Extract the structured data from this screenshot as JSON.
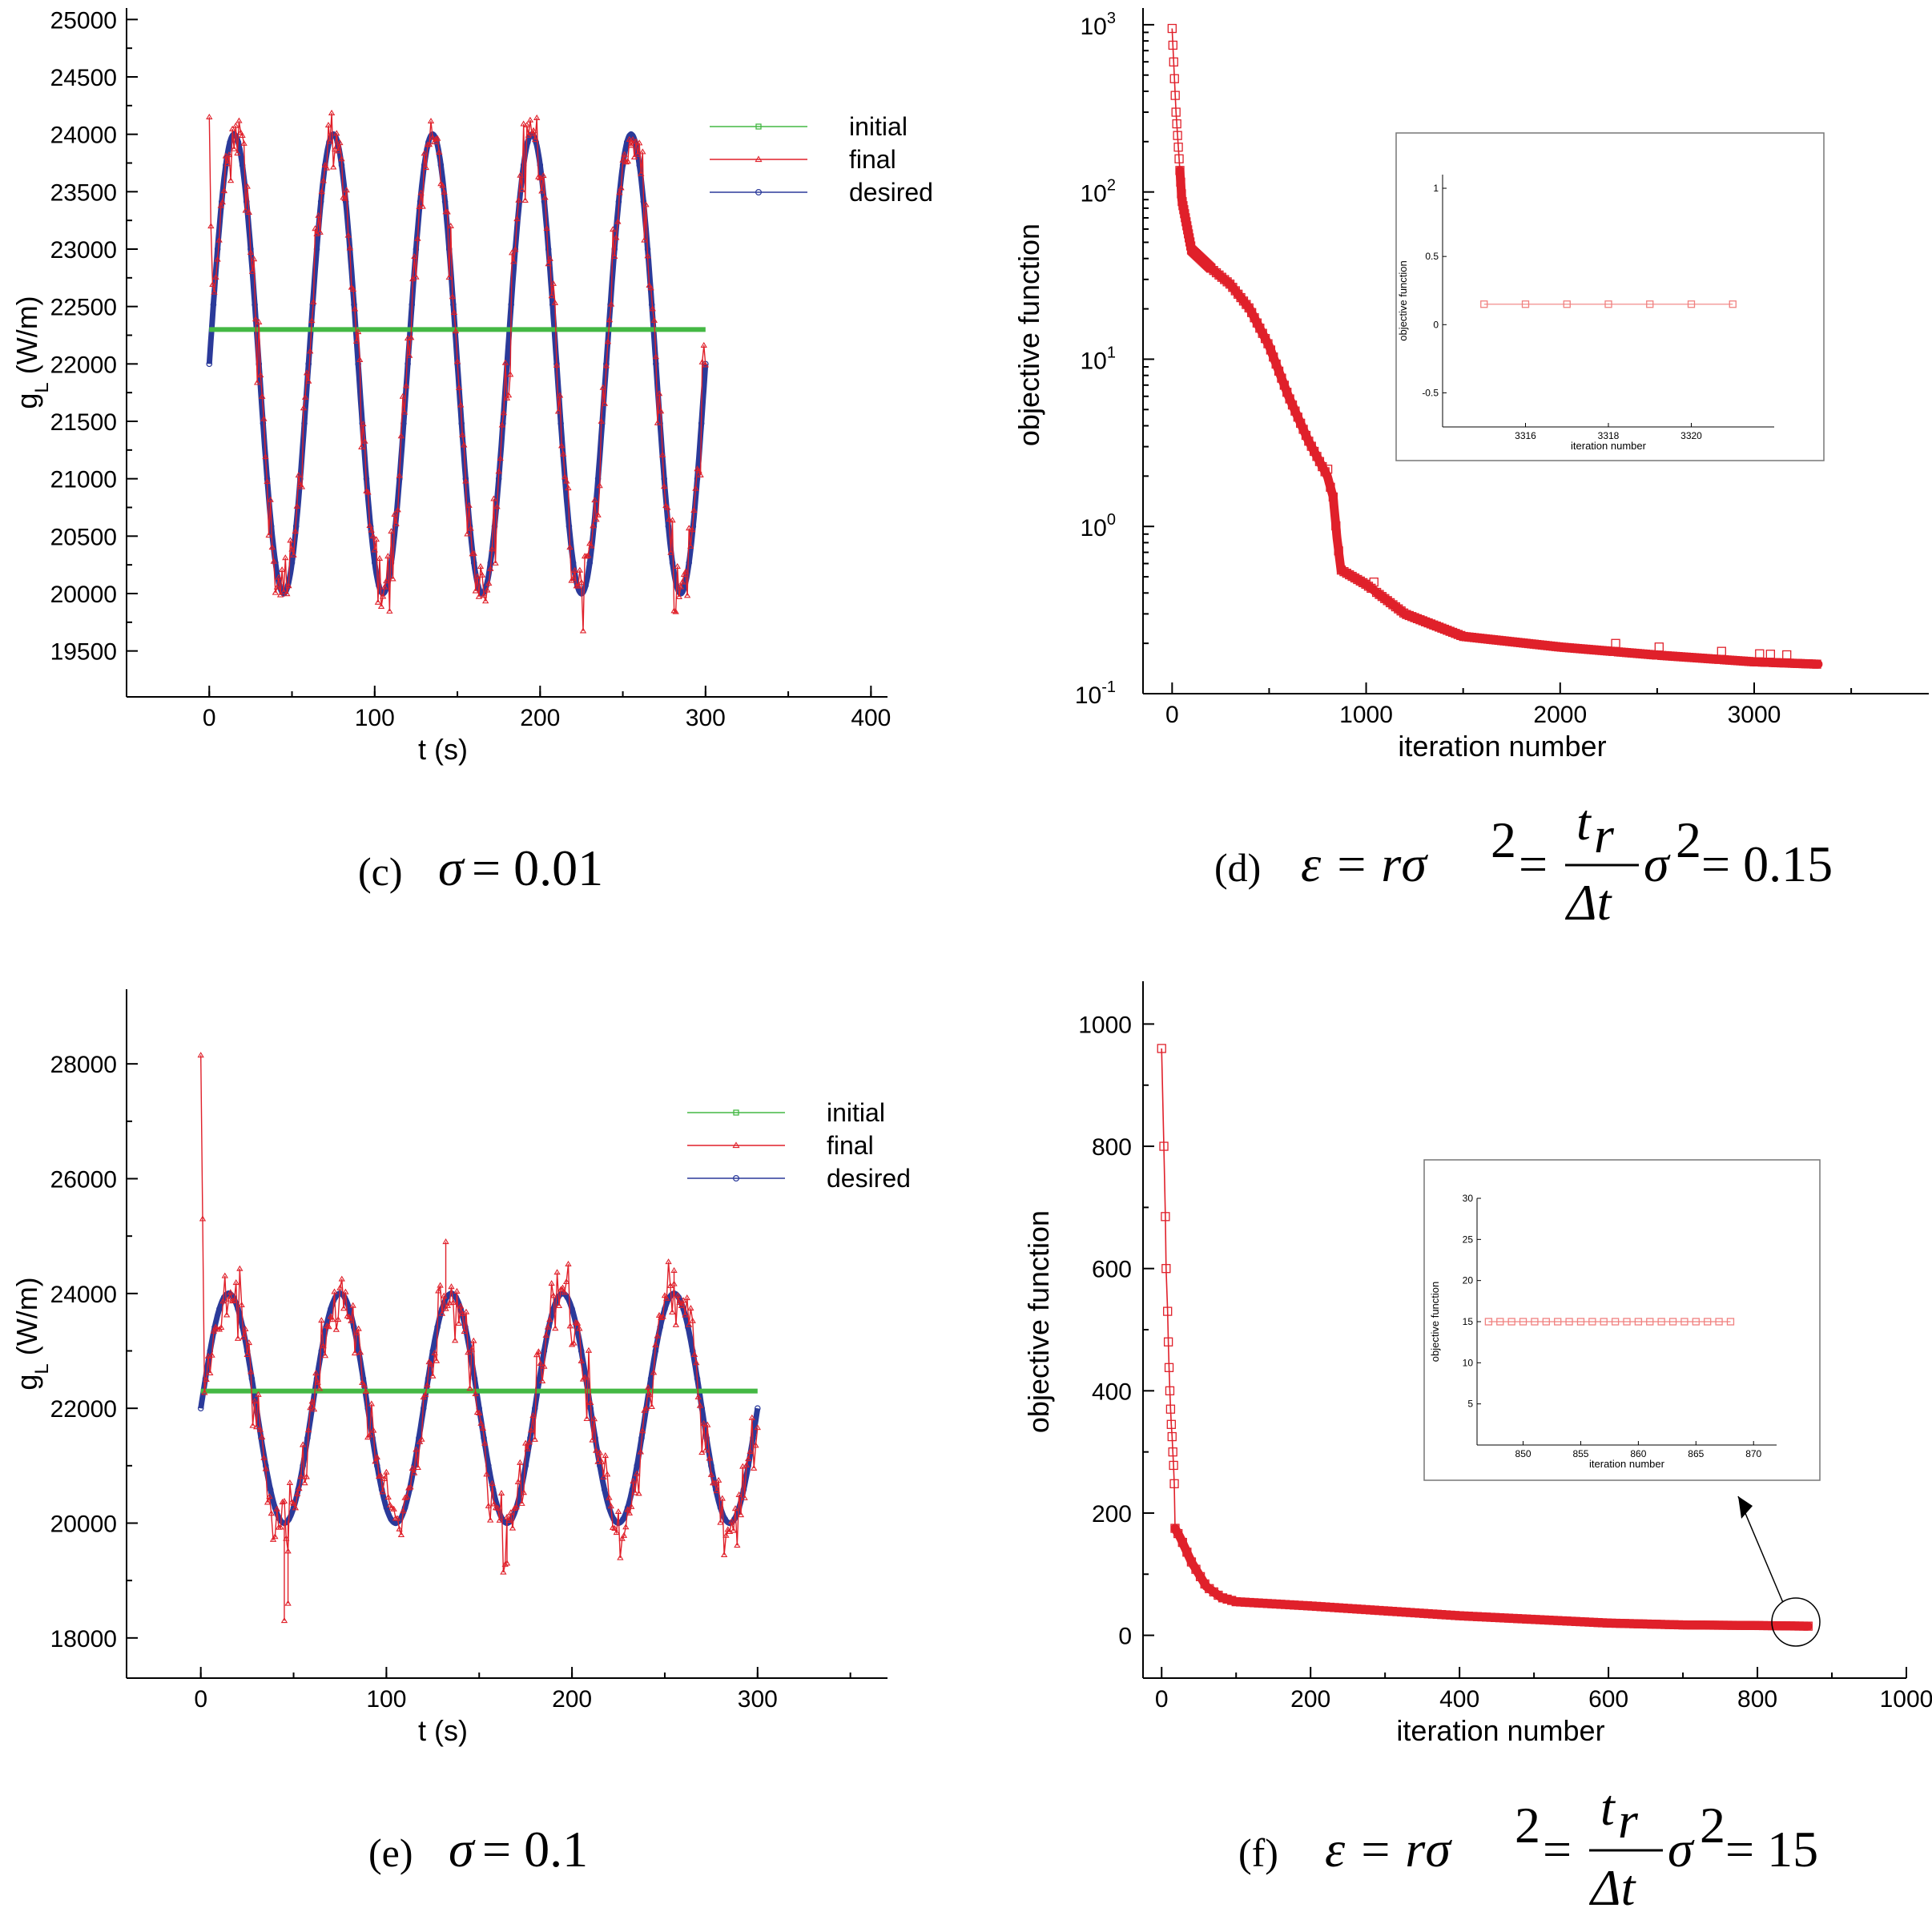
{
  "chart_data": [
    {
      "id": "c",
      "type": "line",
      "xlabel": "t (s)",
      "ylabel_main": "g",
      "ylabel_sub": "L",
      "ylabel_unit": " (W/m)",
      "xlim": [
        -50,
        410
      ],
      "ylim": [
        19100,
        25100
      ],
      "xticks": [
        "0",
        "100",
        "200",
        "300",
        "400"
      ],
      "yticks": [
        "19500",
        "20000",
        "20500",
        "21000",
        "21500",
        "22000",
        "22500",
        "23000",
        "23500",
        "24000",
        "24500",
        "25000"
      ],
      "series": [
        {
          "name": "initial",
          "color": "#44b844",
          "desc": "constant 22300 over t 0 to 300"
        },
        {
          "name": "final",
          "color": "#e0202a",
          "desc": "noisy sinusoid, starts at 24150, sigma 0.01"
        },
        {
          "name": "desired",
          "color": "#2b3a9a",
          "desc": "22000 + 2000 sin(2 pi t / 60), t 0 to 300"
        }
      ],
      "caption": {
        "label": "(c)",
        "math": "σ",
        "eq": " = 0.01"
      }
    },
    {
      "id": "d",
      "type": "line",
      "yscale": "log",
      "xlabel": "iteration number",
      "ylabel": "objective function",
      "xlim": [
        -150,
        3900
      ],
      "ylim_log10": [
        -1,
        3.1
      ],
      "xticks": [
        "0",
        "1000",
        "2000",
        "3000"
      ],
      "yticks": [
        {
          "base": "10",
          "exp": "-1"
        },
        {
          "base": "10",
          "exp": "0"
        },
        {
          "base": "10",
          "exp": "1"
        },
        {
          "base": "10",
          "exp": "2"
        },
        {
          "base": "10",
          "exp": "3"
        }
      ],
      "points": [
        [
          0,
          950
        ],
        [
          20,
          300
        ],
        [
          50,
          90
        ],
        [
          100,
          45
        ],
        [
          200,
          35
        ],
        [
          300,
          28
        ],
        [
          400,
          20
        ],
        [
          500,
          12
        ],
        [
          600,
          6
        ],
        [
          700,
          3.3
        ],
        [
          800,
          2.0
        ],
        [
          830,
          1.5
        ],
        [
          850,
          0.85
        ],
        [
          870,
          0.55
        ],
        [
          1000,
          0.45
        ],
        [
          1200,
          0.3
        ],
        [
          1500,
          0.22
        ],
        [
          2000,
          0.19
        ],
        [
          2500,
          0.17
        ],
        [
          3000,
          0.155
        ],
        [
          3330,
          0.15
        ]
      ],
      "series": [
        {
          "name": "objective",
          "color": "#e0202a"
        }
      ],
      "inset": {
        "xlabel": "iteration number",
        "ylabel": "objective function",
        "xticks": [
          "3316",
          "3318",
          "3320"
        ],
        "yticks": [
          "-0.5",
          "0",
          "0.5",
          "1"
        ],
        "xrange": [
          3314,
          3322
        ],
        "yrange": [
          -0.75,
          1.1
        ],
        "x": [
          3315,
          3316,
          3317,
          3318,
          3319,
          3320,
          3321
        ],
        "value": 0.15
      },
      "caption": {
        "label": "(d)",
        "lhs": "ε = rσ",
        "mid": " = ",
        "frac_num": "t",
        "frac_num_sub": "r",
        "frac_den": "Δt",
        "after": "σ",
        "eq": " = 0.15",
        "sq": "2"
      }
    },
    {
      "id": "e",
      "type": "line",
      "xlabel": "t (s)",
      "ylabel_main": "g",
      "ylabel_sub": "L",
      "ylabel_unit": " (W/m)",
      "xlim": [
        -40,
        370
      ],
      "ylim": [
        17300,
        29300
      ],
      "xticks": [
        "0",
        "100",
        "200",
        "300"
      ],
      "yticks": [
        "18000",
        "20000",
        "22000",
        "24000",
        "26000",
        "28000"
      ],
      "series": [
        {
          "name": "initial",
          "color": "#44b844",
          "desc": "constant 22300 over t 0 to 300"
        },
        {
          "name": "final",
          "color": "#e0202a",
          "desc": "noisy sinusoid, starts at 28150, sigma 0.1"
        },
        {
          "name": "desired",
          "color": "#2b3a9a",
          "desc": "22000 + 2000 sin(2 pi t / 60), t 0 to 300"
        }
      ],
      "caption": {
        "label": "(e)",
        "math": "σ",
        "eq": " = 0.1"
      }
    },
    {
      "id": "f",
      "type": "line",
      "xlabel": "iteration number",
      "ylabel": "objective function",
      "xlim": [
        -25,
        1000
      ],
      "ylim": [
        -70,
        1070
      ],
      "xticks": [
        "0",
        "200",
        "400",
        "600",
        "800",
        "1000"
      ],
      "yticks": [
        "0",
        "200",
        "400",
        "600",
        "800",
        "1000"
      ],
      "points": [
        [
          0,
          960
        ],
        [
          3,
          800
        ],
        [
          5,
          685
        ],
        [
          6,
          600
        ],
        [
          8,
          530
        ],
        [
          9,
          480
        ],
        [
          10,
          438
        ],
        [
          11,
          400
        ],
        [
          12,
          370
        ],
        [
          13,
          345
        ],
        [
          14,
          325
        ],
        [
          15,
          300
        ],
        [
          16,
          278
        ],
        [
          17,
          248
        ],
        [
          18,
          175
        ],
        [
          25,
          160
        ],
        [
          40,
          120
        ],
        [
          60,
          80
        ],
        [
          80,
          62
        ],
        [
          100,
          55
        ],
        [
          200,
          48
        ],
        [
          300,
          40
        ],
        [
          400,
          32
        ],
        [
          500,
          26
        ],
        [
          600,
          20
        ],
        [
          700,
          17
        ],
        [
          800,
          16
        ],
        [
          868,
          15
        ]
      ],
      "series": [
        {
          "name": "objective",
          "color": "#e0202a"
        }
      ],
      "inset": {
        "xlabel": "iteration number",
        "ylabel": "objective function",
        "xticks": [
          "850",
          "855",
          "860",
          "865",
          "870"
        ],
        "yticks": [
          "5",
          "10",
          "15",
          "20",
          "25",
          "30"
        ],
        "xrange": [
          846,
          872
        ],
        "yrange": [
          0,
          30
        ],
        "x": [
          847,
          848,
          849,
          850,
          851,
          852,
          853,
          854,
          855,
          856,
          857,
          858,
          859,
          860,
          861,
          862,
          863,
          864,
          865,
          866,
          867,
          868
        ],
        "value": 15
      },
      "caption": {
        "label": "(f)",
        "lhs": "ε = rσ",
        "mid": " = ",
        "frac_num": "t",
        "frac_num_sub": "r",
        "frac_den": "Δt",
        "after": "σ",
        "eq": " = 15",
        "sq": "2"
      }
    }
  ]
}
